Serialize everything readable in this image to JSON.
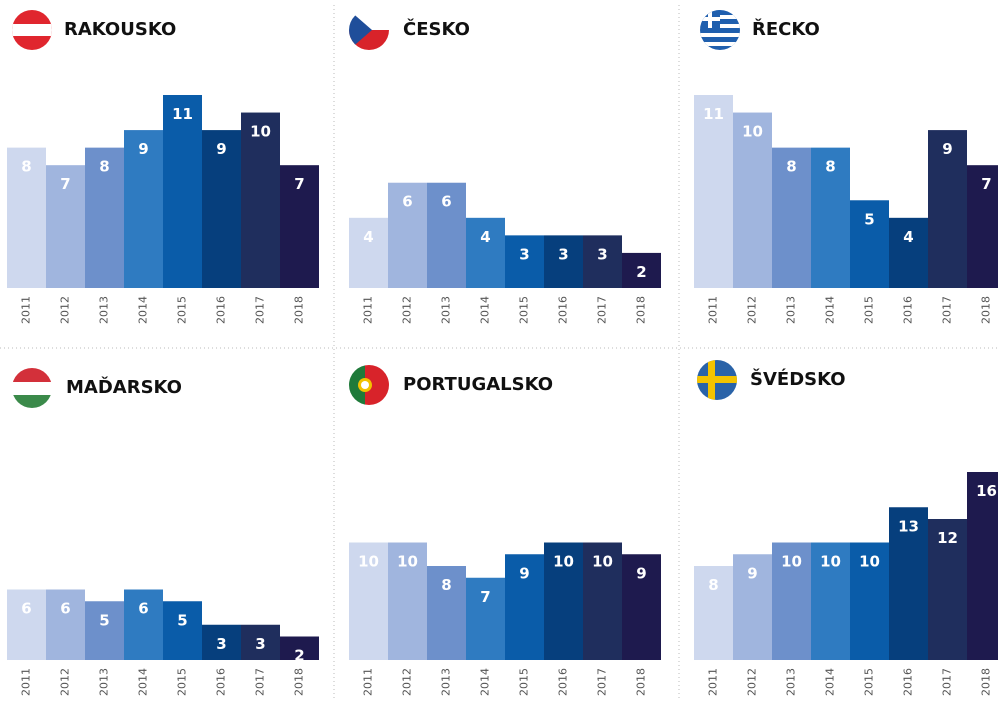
{
  "chart_data": [
    {
      "type": "bar",
      "title": "RAKOUSKO",
      "categories": [
        "2011",
        "2012",
        "2013",
        "2014",
        "2015",
        "2016",
        "2017",
        "2018"
      ],
      "values": [
        8,
        7,
        8,
        9,
        11,
        9,
        10,
        7
      ],
      "colors": [
        "#ced8ee",
        "#a0b5de",
        "#6d90cb",
        "#2f7bc1",
        "#0a5ca9",
        "#063f7d",
        "#1f2e5d",
        "#1e1a4e"
      ],
      "ylim": [
        0,
        11
      ]
    },
    {
      "type": "bar",
      "title": "ČESKO",
      "categories": [
        "2011",
        "2012",
        "2013",
        "2014",
        "2015",
        "2016",
        "2017",
        "2018"
      ],
      "values": [
        4,
        6,
        6,
        4,
        3,
        3,
        3,
        2
      ],
      "colors": [
        "#ced8ee",
        "#a0b5de",
        "#6d90cb",
        "#2f7bc1",
        "#0a5ca9",
        "#063f7d",
        "#1f2e5d",
        "#1e1a4e"
      ],
      "ylim": [
        0,
        11
      ]
    },
    {
      "type": "bar",
      "title": "ŘECKO",
      "categories": [
        "2011",
        "2012",
        "2013",
        "2014",
        "2015",
        "2016",
        "2017",
        "2018"
      ],
      "values": [
        11,
        10,
        8,
        8,
        5,
        4,
        9,
        7
      ],
      "colors": [
        "#ced8ee",
        "#a0b5de",
        "#6d90cb",
        "#2f7bc1",
        "#0a5ca9",
        "#063f7d",
        "#1f2e5d",
        "#1e1a4e"
      ],
      "ylim": [
        0,
        11
      ]
    },
    {
      "type": "bar",
      "title": "MAĎARSKO",
      "categories": [
        "2011",
        "2012",
        "2013",
        "2014",
        "2015",
        "2016",
        "2017",
        "2018"
      ],
      "values": [
        6,
        6,
        5,
        6,
        5,
        3,
        3,
        2
      ],
      "colors": [
        "#ced8ee",
        "#a0b5de",
        "#6d90cb",
        "#2f7bc1",
        "#0a5ca9",
        "#063f7d",
        "#1f2e5d",
        "#1e1a4e"
      ],
      "ylim": [
        0,
        16
      ]
    },
    {
      "type": "bar",
      "title": "PORTUGALSKO",
      "categories": [
        "2011",
        "2012",
        "2013",
        "2014",
        "2015",
        "2016",
        "2017",
        "2018"
      ],
      "values": [
        10,
        10,
        8,
        7,
        9,
        10,
        10,
        9
      ],
      "colors": [
        "#ced8ee",
        "#a0b5de",
        "#6d90cb",
        "#2f7bc1",
        "#0a5ca9",
        "#063f7d",
        "#1f2e5d",
        "#1e1a4e"
      ],
      "ylim": [
        0,
        16
      ]
    },
    {
      "type": "bar",
      "title": "ŠVÉDSKO",
      "categories": [
        "2011",
        "2012",
        "2013",
        "2014",
        "2015",
        "2016",
        "2017",
        "2018"
      ],
      "values": [
        8,
        9,
        10,
        10,
        10,
        13,
        12,
        16
      ],
      "colors": [
        "#ced8ee",
        "#a0b5de",
        "#6d90cb",
        "#2f7bc1",
        "#0a5ca9",
        "#063f7d",
        "#1f2e5d",
        "#1e1a4e"
      ],
      "ylim": [
        0,
        16
      ]
    }
  ]
}
